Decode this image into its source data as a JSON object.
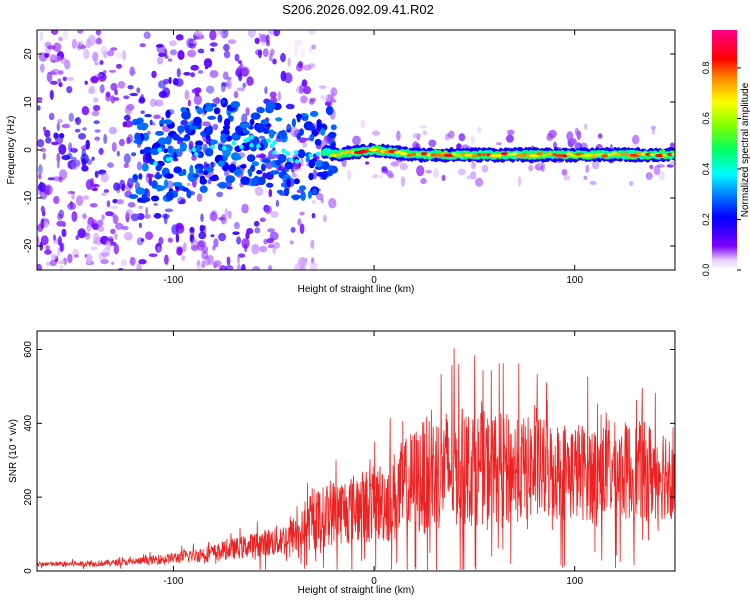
{
  "title": "S206.2026.092.09.41.R02",
  "chart_data": [
    {
      "type": "heatmap",
      "name": "spectrogram",
      "xlabel": "Height of straight line (km)",
      "ylabel": "Frequency (Hz)",
      "xlim": [
        -168,
        150
      ],
      "ylim": [
        -25,
        25
      ],
      "x_ticks": [
        -100,
        0,
        100
      ],
      "x_tick_labels": [
        "-100",
        "0",
        "100"
      ],
      "y_ticks": [
        -20,
        -10,
        0,
        10,
        20
      ],
      "y_tick_labels": [
        "-20",
        "-10",
        "0",
        "10",
        "20"
      ],
      "signal_line": {
        "description_values": "dominant frequency vs height",
        "x": [
          -115,
          -100,
          -80,
          -60,
          -45,
          -35,
          -28,
          -20,
          0,
          20,
          40,
          60,
          80,
          100,
          120,
          140,
          150
        ],
        "y": [
          -2,
          -1,
          1,
          2,
          0,
          -2,
          0,
          -1,
          0,
          -1,
          -1,
          -1,
          -1,
          -1,
          -1,
          -1,
          -1
        ]
      },
      "colorbar": {
        "label": "Normalized spectral amplitude",
        "range": [
          0,
          0.95
        ],
        "ticks": [
          0.0,
          0.2,
          0.4,
          0.6,
          0.8
        ],
        "tick_labels": [
          "0.0",
          "0.2",
          "0.4",
          "0.6",
          "0.8"
        ]
      }
    },
    {
      "type": "line",
      "name": "snr",
      "xlabel": "Height of straight line (km)",
      "ylabel": "SNR (10 * v/v)",
      "xlim": [
        -168,
        150
      ],
      "ylim": [
        0,
        650
      ],
      "x_ticks": [
        -100,
        0,
        100
      ],
      "x_tick_labels": [
        "-100",
        "0",
        "100"
      ],
      "y_ticks": [
        0,
        200,
        400,
        600
      ],
      "y_tick_labels": [
        "0",
        "200",
        "400",
        "600"
      ],
      "series": [
        {
          "name": "SNR",
          "color": "#ee2222",
          "envelope_x": [
            -168,
            -140,
            -120,
            -100,
            -80,
            -60,
            -45,
            -35,
            -28,
            -20,
            -10,
            0,
            10,
            20,
            30,
            40,
            60,
            80,
            100,
            120,
            140,
            150
          ],
          "envelope_mean": [
            18,
            20,
            25,
            35,
            50,
            70,
            85,
            110,
            140,
            160,
            170,
            180,
            200,
            240,
            270,
            280,
            280,
            275,
            270,
            270,
            270,
            275
          ],
          "envelope_spread": [
            8,
            10,
            12,
            20,
            30,
            45,
            60,
            80,
            110,
            120,
            130,
            140,
            170,
            200,
            220,
            220,
            200,
            190,
            180,
            180,
            180,
            180
          ]
        }
      ]
    }
  ]
}
